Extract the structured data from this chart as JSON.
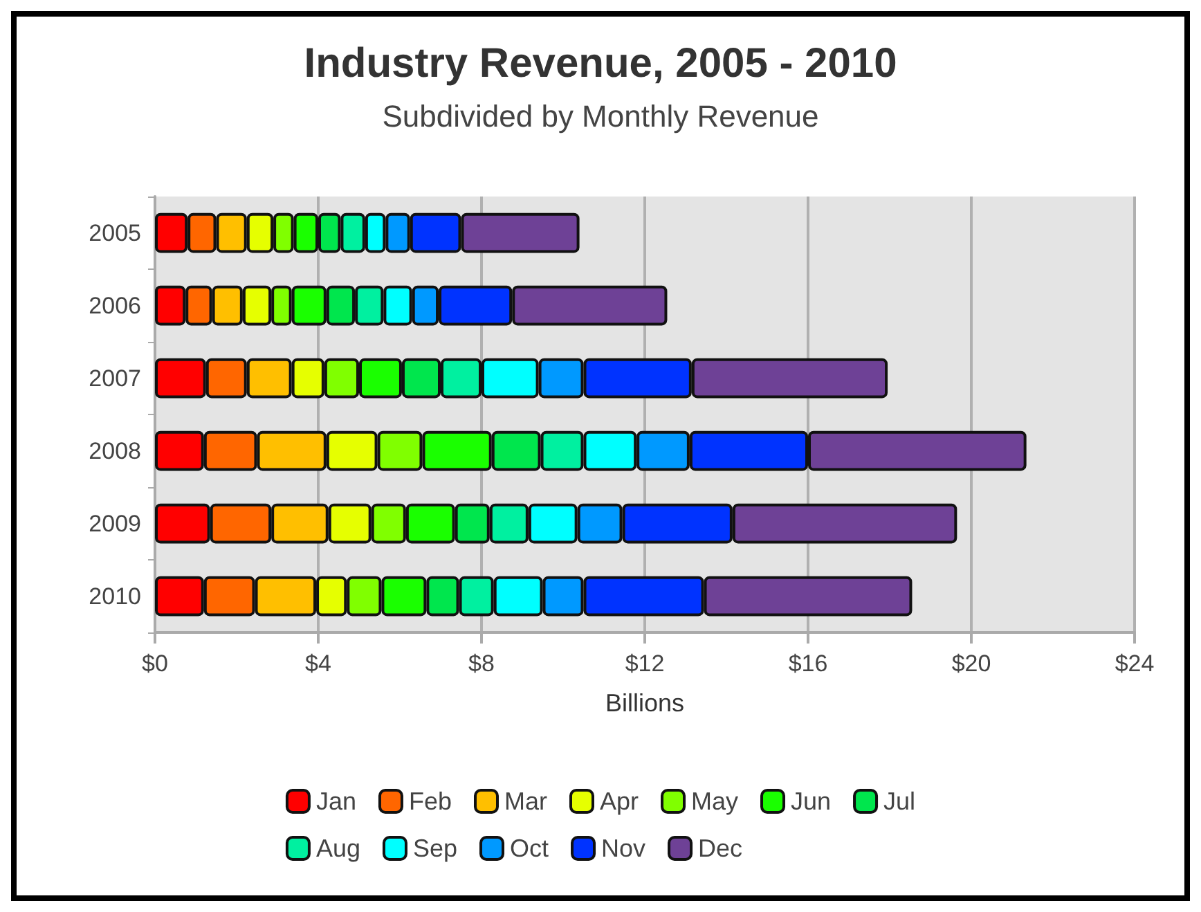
{
  "chart_data": {
    "type": "bar",
    "title": "Industry Revenue, 2005 - 2010",
    "subtitle": "Subdivided by Monthly Revenue",
    "xlabel": "Billions",
    "orientation": "horizontal",
    "stacked": true,
    "categories": [
      "2005",
      "2006",
      "2007",
      "2008",
      "2009",
      "2010"
    ],
    "series": [
      {
        "name": "Jan",
        "color": "#ff0000",
        "values": [
          0.8,
          0.75,
          1.25,
          1.2,
          1.35,
          1.2
        ]
      },
      {
        "name": "Feb",
        "color": "#ff6600",
        "values": [
          0.7,
          0.65,
          1.0,
          1.3,
          1.5,
          1.25
        ]
      },
      {
        "name": "Mar",
        "color": "#ffbf00",
        "values": [
          0.75,
          0.75,
          1.1,
          1.7,
          1.4,
          1.5
        ]
      },
      {
        "name": "Apr",
        "color": "#e6ff00",
        "values": [
          0.65,
          0.7,
          0.8,
          1.25,
          1.05,
          0.75
        ]
      },
      {
        "name": "May",
        "color": "#80ff00",
        "values": [
          0.5,
          0.5,
          0.85,
          1.1,
          0.85,
          0.85
        ]
      },
      {
        "name": "Jun",
        "color": "#1aff00",
        "values": [
          0.6,
          0.85,
          1.05,
          1.7,
          1.2,
          1.1
        ]
      },
      {
        "name": "Jul",
        "color": "#00e64d",
        "values": [
          0.55,
          0.7,
          0.95,
          1.2,
          0.85,
          0.8
        ]
      },
      {
        "name": "Aug",
        "color": "#00f0a0",
        "values": [
          0.6,
          0.7,
          1.0,
          1.05,
          0.95,
          0.85
        ]
      },
      {
        "name": "Sep",
        "color": "#00ffff",
        "values": [
          0.5,
          0.7,
          1.4,
          1.3,
          1.2,
          1.2
        ]
      },
      {
        "name": "Oct",
        "color": "#0099ff",
        "values": [
          0.6,
          0.65,
          1.1,
          1.3,
          1.1,
          1.0
        ]
      },
      {
        "name": "Nov",
        "color": "#0033ff",
        "values": [
          1.25,
          1.8,
          2.65,
          2.9,
          2.7,
          2.95
        ]
      },
      {
        "name": "Dec",
        "color": "#6e4196",
        "values": [
          2.9,
          3.8,
          4.8,
          5.35,
          5.5,
          5.1
        ]
      }
    ],
    "xlim": [
      0,
      24
    ],
    "xticks": [
      {
        "value": 0,
        "label": "$0"
      },
      {
        "value": 4,
        "label": "$4"
      },
      {
        "value": 8,
        "label": "$8"
      },
      {
        "value": 12,
        "label": "$12"
      },
      {
        "value": 16,
        "label": "$16"
      },
      {
        "value": 20,
        "label": "$20"
      },
      {
        "value": 24,
        "label": "$24"
      }
    ],
    "grid": "x",
    "legend": "bottom"
  }
}
